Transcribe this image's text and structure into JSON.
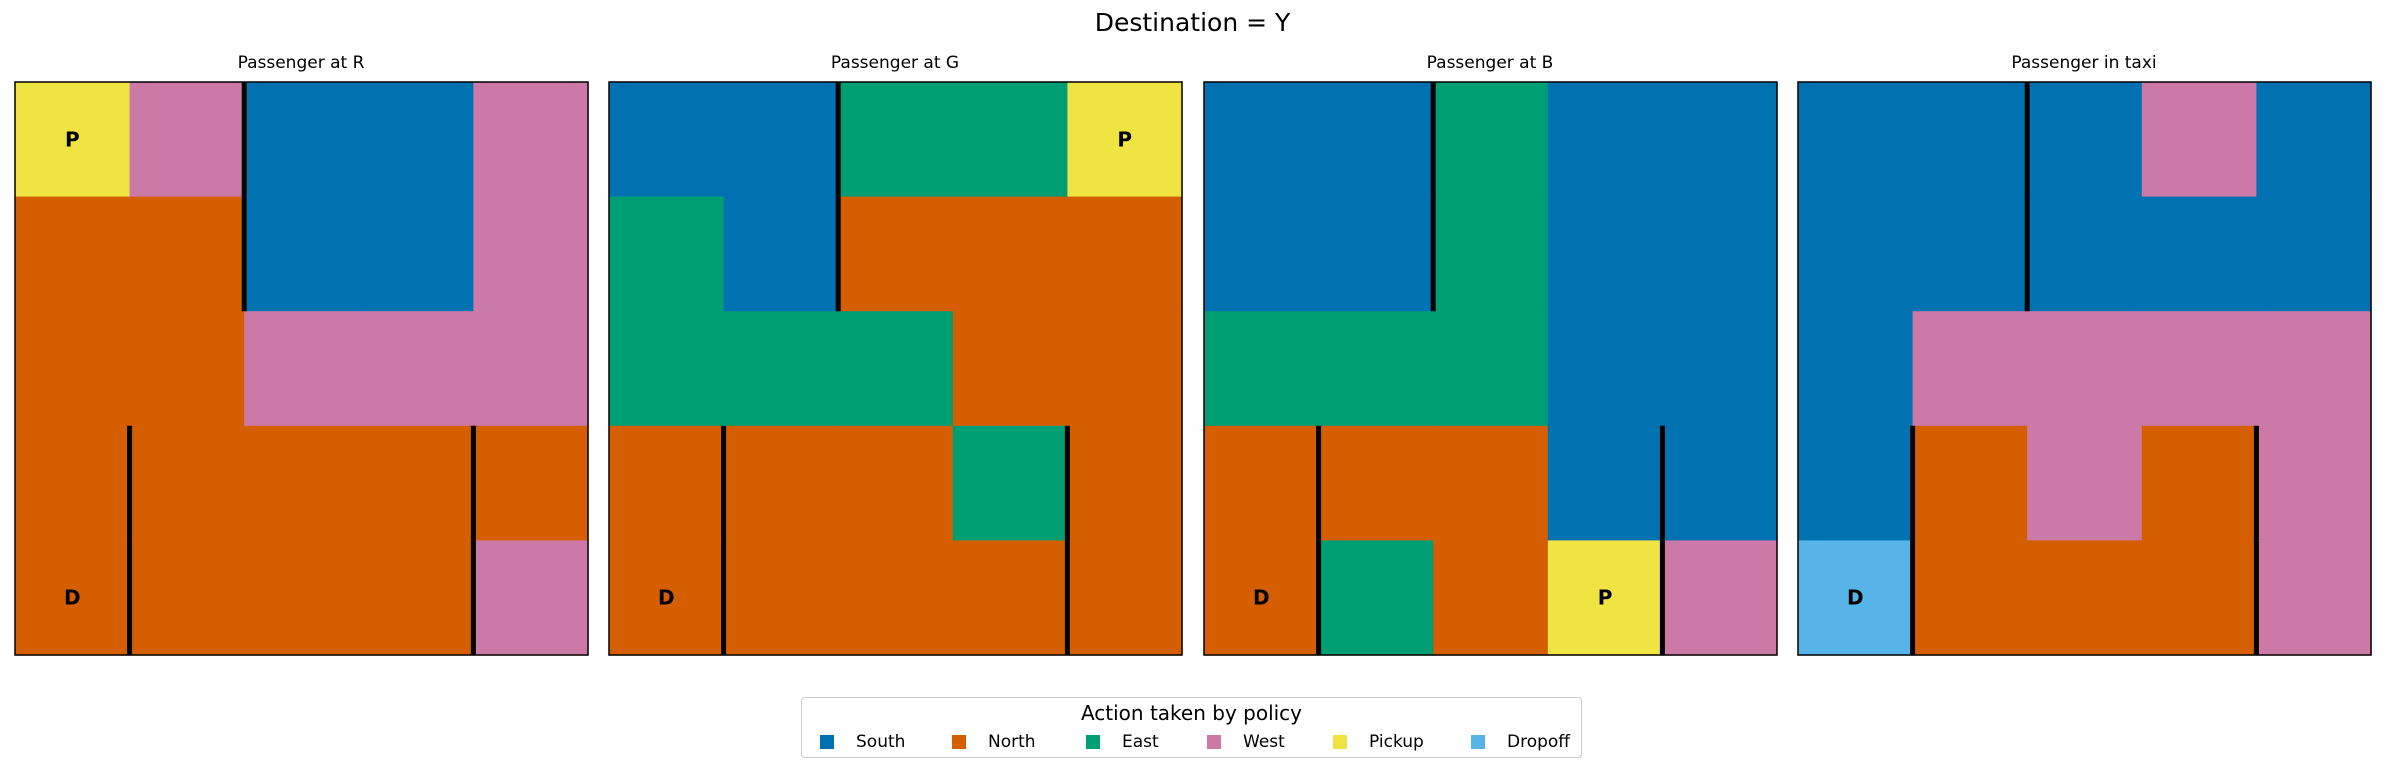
{
  "suptitle": "Destination = Y",
  "legend": {
    "title": "Action taken by policy",
    "items": [
      {
        "label": "South",
        "color": "#0072B2"
      },
      {
        "label": "North",
        "color": "#D55E00"
      },
      {
        "label": "East",
        "color": "#009E73"
      },
      {
        "label": "West",
        "color": "#CC79A7"
      },
      {
        "label": "Pickup",
        "color": "#F0E442"
      },
      {
        "label": "Dropoff",
        "color": "#56B4E9"
      }
    ]
  },
  "chart_data": [
    {
      "type": "heatmap",
      "title": "Passenger at R",
      "grid": [
        [
          "Pickup",
          "West",
          "South",
          "South",
          "West"
        ],
        [
          "North",
          "North",
          "South",
          "South",
          "West"
        ],
        [
          "North",
          "North",
          "West",
          "West",
          "West"
        ],
        [
          "North",
          "North",
          "North",
          "North",
          "North"
        ],
        [
          "North",
          "North",
          "North",
          "North",
          "West"
        ]
      ],
      "markers": [
        {
          "row": 0,
          "col": 0,
          "text": "P"
        },
        {
          "row": 4,
          "col": 0,
          "text": "D"
        }
      ]
    },
    {
      "type": "heatmap",
      "title": "Passenger at G",
      "grid": [
        [
          "South",
          "South",
          "East",
          "East",
          "Pickup"
        ],
        [
          "East",
          "South",
          "North",
          "North",
          "North"
        ],
        [
          "East",
          "East",
          "East",
          "North",
          "North"
        ],
        [
          "North",
          "North",
          "North",
          "East",
          "North"
        ],
        [
          "North",
          "North",
          "North",
          "North",
          "North"
        ]
      ],
      "markers": [
        {
          "row": 0,
          "col": 4,
          "text": "P"
        },
        {
          "row": 4,
          "col": 0,
          "text": "D"
        }
      ]
    },
    {
      "type": "heatmap",
      "title": "Passenger at B",
      "grid": [
        [
          "South",
          "South",
          "East",
          "South",
          "South"
        ],
        [
          "South",
          "South",
          "East",
          "South",
          "South"
        ],
        [
          "East",
          "East",
          "East",
          "South",
          "South"
        ],
        [
          "North",
          "North",
          "North",
          "South",
          "South"
        ],
        [
          "North",
          "East",
          "North",
          "Pickup",
          "West"
        ]
      ],
      "markers": [
        {
          "row": 4,
          "col": 3,
          "text": "P"
        },
        {
          "row": 4,
          "col": 0,
          "text": "D"
        }
      ]
    },
    {
      "type": "heatmap",
      "title": "Passenger in taxi",
      "grid": [
        [
          "South",
          "South",
          "South",
          "West",
          "South"
        ],
        [
          "South",
          "South",
          "South",
          "South",
          "South"
        ],
        [
          "South",
          "West",
          "West",
          "West",
          "West"
        ],
        [
          "South",
          "North",
          "West",
          "North",
          "West"
        ],
        [
          "Dropoff",
          "North",
          "North",
          "North",
          "West"
        ]
      ],
      "markers": [
        {
          "row": 4,
          "col": 0,
          "text": "D"
        }
      ]
    }
  ]
}
